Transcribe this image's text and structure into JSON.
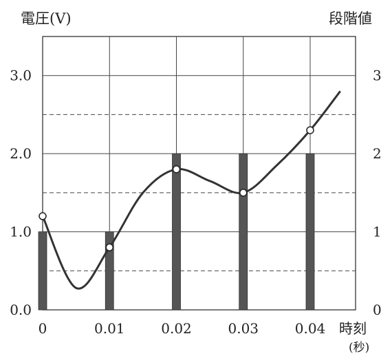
{
  "chart_data": {
    "type": "line",
    "ylabel_left": "電圧(V)",
    "ylabel_right": "段階値",
    "xlabel": "時刻",
    "xlabel_unit": "(秒)",
    "xlim": [
      0,
      0.047
    ],
    "ylim": [
      0,
      3.5
    ],
    "x_ticks": [
      0,
      0.01,
      0.02,
      0.03,
      0.04
    ],
    "x_tick_labels": [
      "0",
      "0.01",
      "0.02",
      "0.03",
      "0.04"
    ],
    "y_ticks_left": [
      0,
      1,
      2,
      3
    ],
    "y_tick_labels_left": [
      "0.0",
      "1.0",
      "2.0",
      "3.0"
    ],
    "y_ticks_right": [
      0,
      1,
      2,
      3
    ],
    "y_tick_labels_right": [
      "0",
      "1",
      "2",
      "3"
    ],
    "dashed_gridlines_y": [
      0.5,
      1.5,
      2.5
    ],
    "grid": true,
    "series": [
      {
        "kind": "curve",
        "x": [
          0,
          0.005,
          0.01,
          0.015,
          0.02,
          0.025,
          0.03,
          0.035,
          0.04,
          0.0445
        ],
        "values": [
          1.2,
          0.28,
          0.8,
          1.5,
          1.8,
          1.65,
          1.5,
          1.85,
          2.3,
          2.8
        ]
      },
      {
        "kind": "sample_points",
        "x": [
          0,
          0.01,
          0.02,
          0.03,
          0.04
        ],
        "values": [
          1.2,
          0.8,
          1.8,
          1.5,
          2.3
        ]
      },
      {
        "kind": "bars",
        "x": [
          0,
          0.01,
          0.02,
          0.03,
          0.04
        ],
        "values": [
          1,
          1,
          2,
          2,
          2
        ]
      }
    ],
    "colors": {
      "curve": "#333333",
      "bar": "#555555",
      "axis": "#222222",
      "grid": "#444444"
    }
  }
}
